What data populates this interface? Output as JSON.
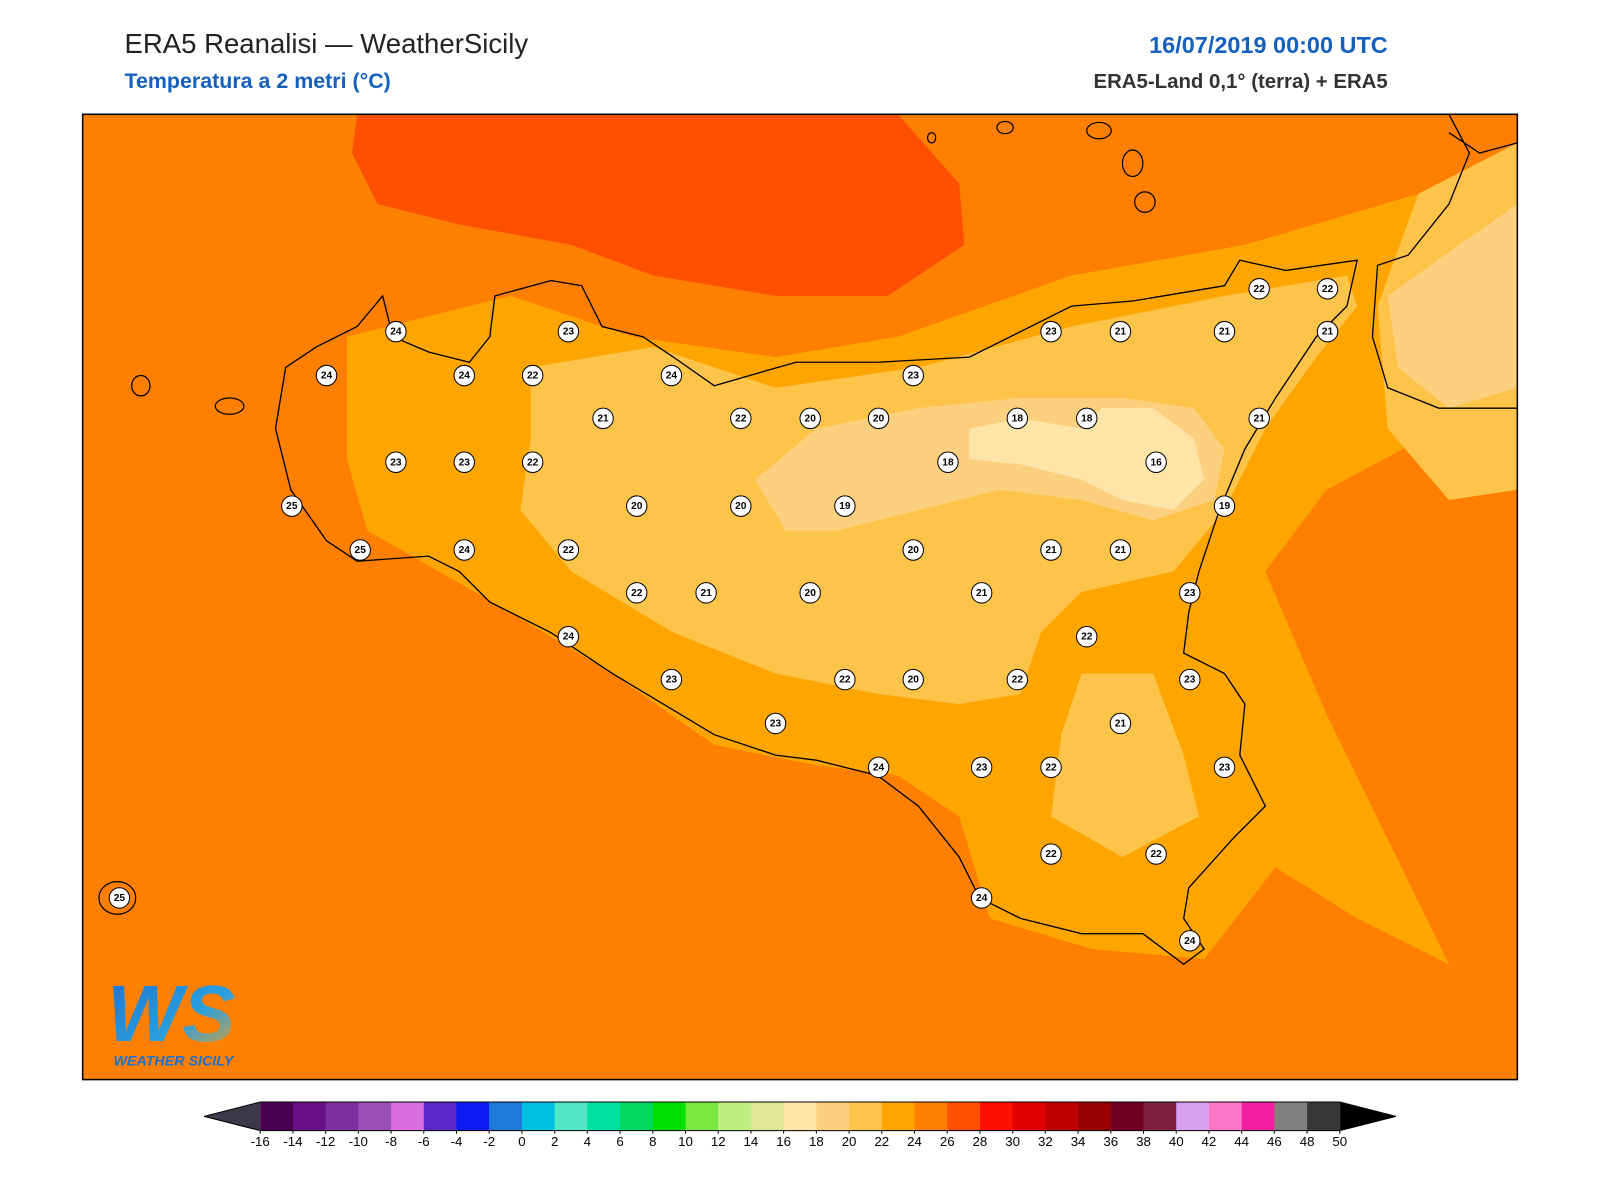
{
  "header": {
    "title": "ERA5 Reanalisi — WeatherSicily",
    "subtitle": "Temperatura a 2 metri (°C)",
    "datetime": "16/07/2019 00:00 UTC",
    "source": "ERA5-Land 0,1° (terra) + ERA5"
  },
  "map": {
    "stations": [
      24,
      23,
      24,
      24,
      22,
      24,
      23,
      23,
      21,
      21,
      22,
      22,
      21,
      21,
      22,
      20,
      20,
      18,
      18,
      21,
      23,
      23,
      22,
      18,
      16,
      25,
      20,
      20,
      19,
      19,
      25,
      24,
      22,
      20,
      21,
      21,
      22,
      21,
      20,
      21,
      23,
      24,
      22,
      23,
      22,
      20,
      22,
      23,
      21,
      23,
      24,
      23,
      22,
      23,
      22,
      22,
      25,
      24,
      24
    ]
  },
  "colorbar": {
    "ticks": [
      -16,
      -14,
      -12,
      -10,
      -8,
      -6,
      -4,
      -2,
      0,
      2,
      4,
      6,
      8,
      10,
      12,
      14,
      16,
      18,
      20,
      22,
      24,
      26,
      28,
      30,
      32,
      34,
      36,
      38,
      40,
      42,
      44,
      46,
      48,
      50
    ],
    "colors": [
      "#4a0050",
      "#6a0f8a",
      "#7d2fa0",
      "#9b4fb8",
      "#d86ee0",
      "#5a27c8",
      "#0a1cf0",
      "#1e7bd8",
      "#00c0e0",
      "#50e8c8",
      "#00e0a0",
      "#00d860",
      "#00e000",
      "#78e840",
      "#c0ee80",
      "#e0e898",
      "#ffe4a8",
      "#fdd080",
      "#fec44a",
      "#ffa500",
      "#ff8000",
      "#ff4f00",
      "#ff1000",
      "#e00000",
      "#c00000",
      "#980000",
      "#700020",
      "#802040",
      "#d8a0f0",
      "#ff78c8",
      "#f020a0",
      "#808080",
      "#383838"
    ],
    "under_color": "#3a3a4a",
    "over_color": "#000000"
  },
  "logo": {
    "mark": "WS",
    "name": "WEATHER SICILY"
  }
}
